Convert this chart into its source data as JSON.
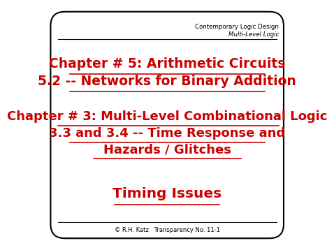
{
  "bg_color": "#ffffff",
  "border_color": "#000000",
  "text_color": "#cc0000",
  "header_color": "#000000",
  "header_line1": "Contemporary Logic Design",
  "header_line2": "Multi-Level Logic",
  "title1_line1": "Chapter # 5: Arithmetic Circuits",
  "title1_line2": "5.2 -- Networks for Binary Addition",
  "title2_line1": "Chapter # 3: Multi-Level Combinational Logic",
  "title2_line2": "3.3 and 3.4 -- Time Response and",
  "title2_line3": "Hazards / Glitches",
  "title3": "Timing Issues",
  "footer": "© R.H. Katz   Transparency No. 11-1",
  "footer_color": "#000000"
}
